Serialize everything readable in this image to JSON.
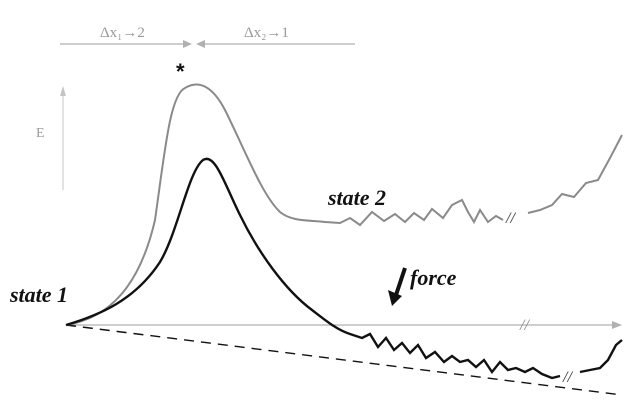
{
  "labels": {
    "state1": "state 1",
    "state2": "state 2",
    "force": "force",
    "star": "*",
    "top_left": "Δx₁→2",
    "top_right": "Δx₂→1",
    "y_axis": "E",
    "break_mark": "//"
  },
  "colors": {
    "black_curve": "#111111",
    "grey_curve": "#8a8a8a",
    "axis": "#b0b0b0",
    "dashed": "#111111"
  }
}
